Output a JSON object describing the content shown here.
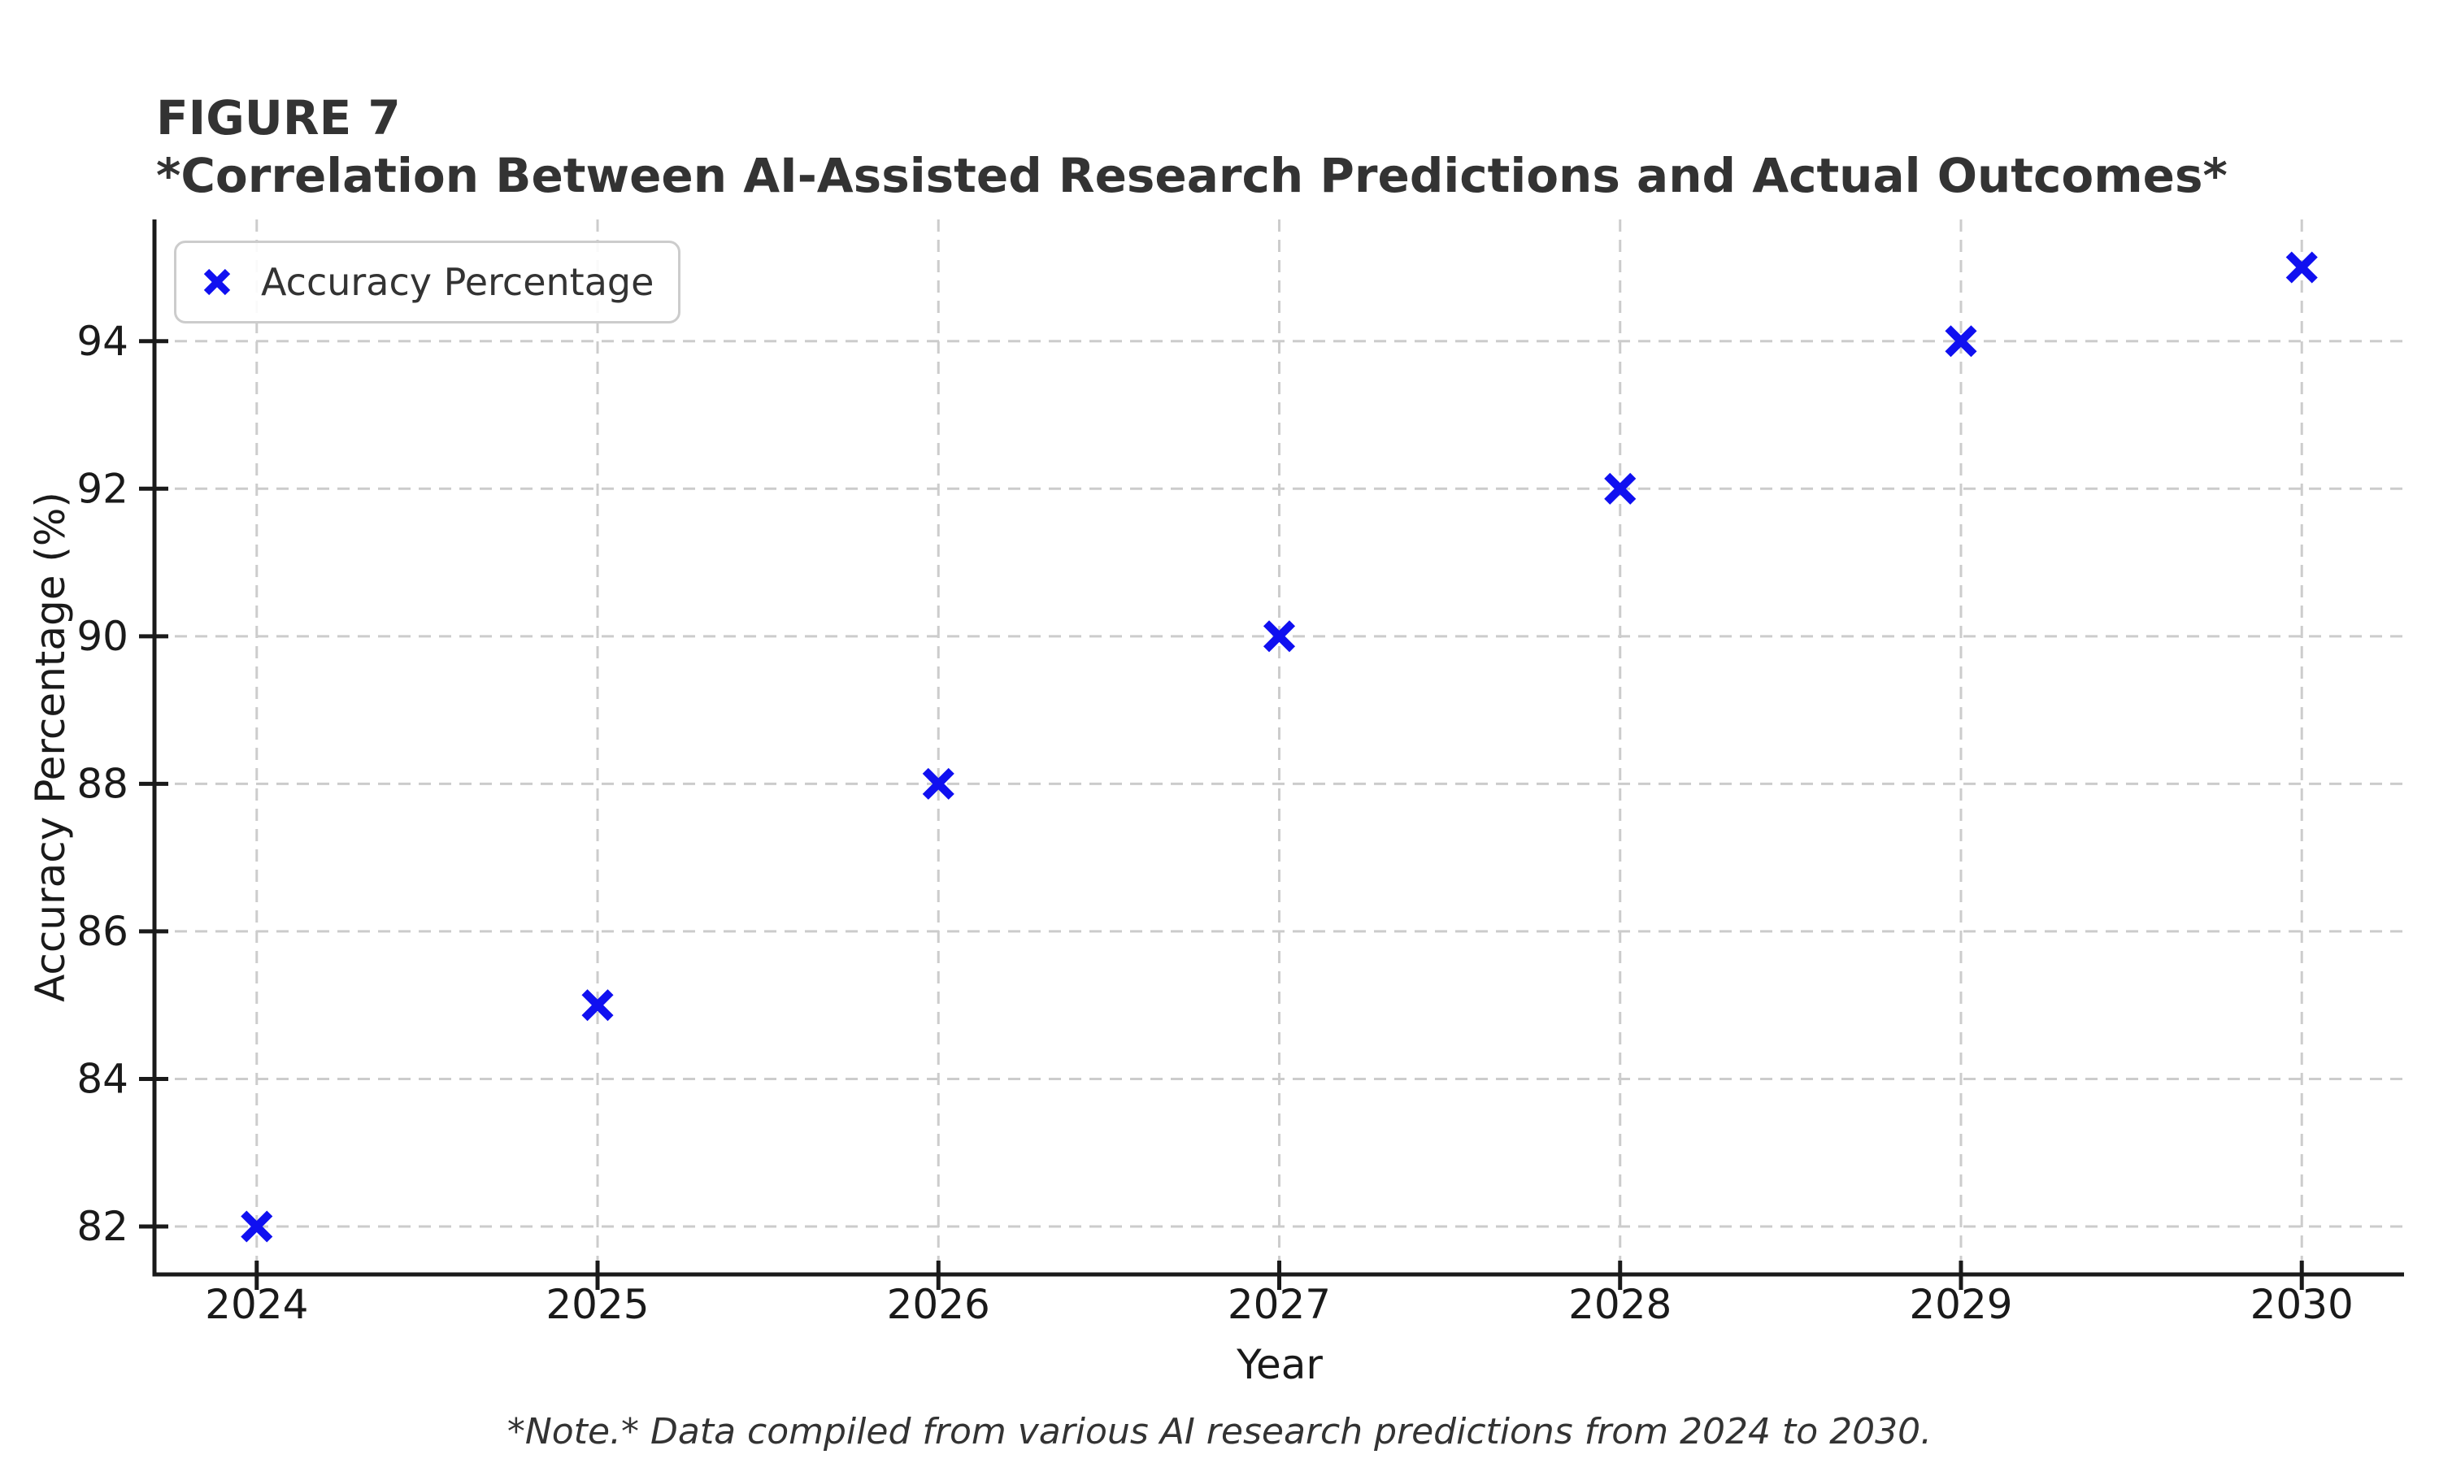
{
  "header": {
    "figure_label": "FIGURE 7",
    "title": "*Correlation Between AI-Assisted Research Predictions and Actual Outcomes*"
  },
  "chart_data": {
    "type": "scatter",
    "title": "*Correlation Between AI-Assisted Research Predictions and Actual Outcomes*",
    "series": [
      {
        "name": "Accuracy Percentage",
        "x": [
          2024,
          2025,
          2026,
          2027,
          2028,
          2029,
          2030
        ],
        "y": [
          82,
          85,
          88,
          90,
          92,
          94,
          95
        ]
      }
    ],
    "legend_label": "Accuracy Percentage",
    "legend_position": "upper-left",
    "marker": "x",
    "xlabel": "Year",
    "ylabel": "Accuracy Percentage (%)",
    "xticks": [
      2024,
      2025,
      2026,
      2027,
      2028,
      2029,
      2030
    ],
    "yticks": [
      82,
      84,
      86,
      88,
      90,
      92,
      94
    ],
    "xlim": [
      2023.7,
      2030.3
    ],
    "ylim": [
      81.35,
      95.65
    ],
    "grid": "dashed"
  },
  "note": "*Note.* Data compiled from various AI research predictions from 2024 to 2030.",
  "colors": {
    "marker": "#1010f0",
    "grid": "#cccccc",
    "axis": "#1a1a1a",
    "text": "#333333",
    "legend_border": "#cccccc"
  }
}
